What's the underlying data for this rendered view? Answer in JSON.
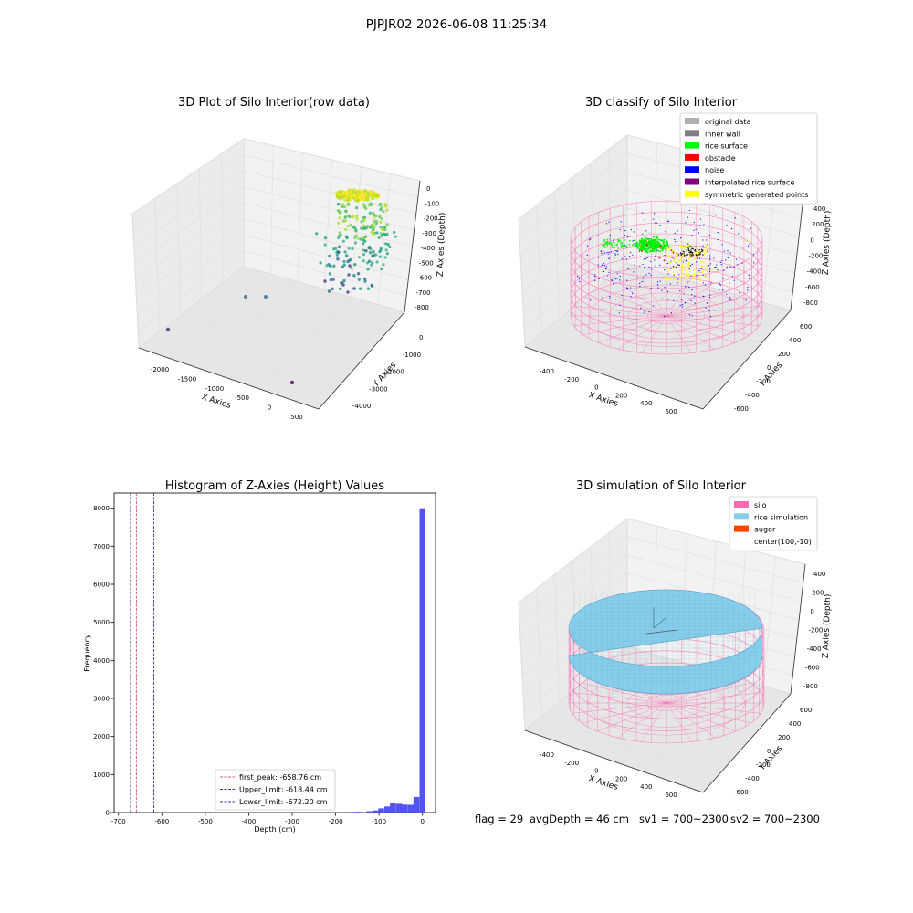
{
  "figure": {
    "suptitle": "PJPJR02 2026-06-08 11:25:34",
    "footer": {
      "flag": "flag = 29",
      "avg_depth": "avgDepth = 46 cm",
      "sv1": "sv1 = 700~2300",
      "sv2": "sv2 = 700~2300"
    }
  },
  "colors": {
    "axes_pane": "#f2f2f2",
    "grid": "#e0e0e0",
    "histogram_bar": "#4a4aee",
    "first_peak_line": "#cc5588",
    "limit_lines": "#3333aa",
    "silo": "#ff69b4",
    "rice_simulation": "#87ceeb",
    "auger": "#ff4500"
  },
  "chart_data": [
    {
      "type": "scatter",
      "title": "3D Plot of Silo Interior(row data)",
      "xlabel": "X Axies",
      "ylabel": "Y Axies",
      "zlabel": "Z Axies (Depth)",
      "x_ticks": [
        "-2000",
        "-1500",
        "-1000",
        "-500",
        "0",
        "500"
      ],
      "y_ticks": [
        "0",
        "-1000",
        "-2000",
        "-3000",
        "-4000"
      ],
      "z_ticks": [
        "0",
        "-100",
        "-200",
        "-300",
        "-400",
        "-500",
        "-600",
        "-700",
        "-800"
      ],
      "xlim": [
        -2300,
        600
      ],
      "ylim": [
        -4300,
        300
      ],
      "zlim": [
        -860,
        30
      ],
      "colormap": "viridis"
    },
    {
      "type": "scatter",
      "title": "3D classify of Silo Interior",
      "xlabel": "X Axies",
      "ylabel": "Y Axies",
      "zlabel": "Z Axies (Depth)",
      "x_ticks": [
        "-400",
        "-200",
        "0",
        "200",
        "400",
        "600"
      ],
      "y_ticks": [
        "600",
        "400",
        "200",
        "0",
        "-200",
        "-400",
        "-600"
      ],
      "z_ticks": [
        "400",
        "200",
        "0",
        "-200",
        "-400",
        "-600",
        "-800"
      ],
      "legend_position": "upper-right",
      "legend": [
        {
          "label": "original data",
          "color": "#b0b0b0"
        },
        {
          "label": "inner wall",
          "color": "#808080"
        },
        {
          "label": "rice surface",
          "color": "#00ff00"
        },
        {
          "label": "obstacle",
          "color": "#ff0000"
        },
        {
          "label": "noise",
          "color": "#0000ff"
        },
        {
          "label": "interpolated rice surface",
          "color": "#800080"
        },
        {
          "label": "symmetric generated points",
          "color": "#ffff00"
        }
      ]
    },
    {
      "type": "bar",
      "title": "Histogram of Z-Axies (Height) Values",
      "xlabel": "Depth (cm)",
      "ylabel": "Frequency",
      "xlim": [
        -710,
        30
      ],
      "ylim": [
        0,
        8400
      ],
      "x_ticks": [
        -700,
        -600,
        -500,
        -400,
        -300,
        -200,
        -100,
        0
      ],
      "y_ticks": [
        0,
        1000,
        2000,
        3000,
        4000,
        5000,
        6000,
        7000,
        8000
      ],
      "bin_width": 13.6,
      "bins": [
        {
          "x": -204,
          "value": 8
        },
        {
          "x": -163,
          "value": 15
        },
        {
          "x": -149,
          "value": 20
        },
        {
          "x": -122,
          "value": 35
        },
        {
          "x": -108,
          "value": 55
        },
        {
          "x": -95,
          "value": 110
        },
        {
          "x": -81,
          "value": 160
        },
        {
          "x": -68,
          "value": 240
        },
        {
          "x": -54,
          "value": 230
        },
        {
          "x": -41,
          "value": 210
        },
        {
          "x": -27,
          "value": 205
        },
        {
          "x": -14,
          "value": 410
        },
        {
          "x": 0,
          "value": 8000
        }
      ],
      "vlines": [
        {
          "name": "first_peak",
          "value": -658.76,
          "legend": "first_peak: -658.76 cm"
        },
        {
          "name": "upper_limit",
          "value": -618.44,
          "legend": "Upper_limit: -618.44 cm"
        },
        {
          "name": "lower_limit",
          "value": -672.2,
          "legend": "Lower_limit: -672.20 cm"
        }
      ],
      "legend_position": "lower-center"
    },
    {
      "type": "scatter",
      "title": "3D simulation of Silo Interior",
      "xlabel": "X Axies",
      "ylabel": "Y Axies",
      "zlabel": "Z Axies (Depth)",
      "x_ticks": [
        "-400",
        "-200",
        "0",
        "200",
        "400",
        "600"
      ],
      "y_ticks": [
        "600",
        "400",
        "200",
        "0",
        "-200",
        "-400",
        "-600"
      ],
      "z_ticks": [
        "400",
        "200",
        "0",
        "-200",
        "-400",
        "-600",
        "-800"
      ],
      "legend_position": "upper-right",
      "legend": [
        {
          "label": "silo",
          "color": "#ff69b4"
        },
        {
          "label": "rice simulation",
          "color": "#87ceeb"
        },
        {
          "label": "auger",
          "color": "#ff4500"
        },
        {
          "label": "center(100,-10)",
          "color": "none"
        }
      ]
    }
  ]
}
